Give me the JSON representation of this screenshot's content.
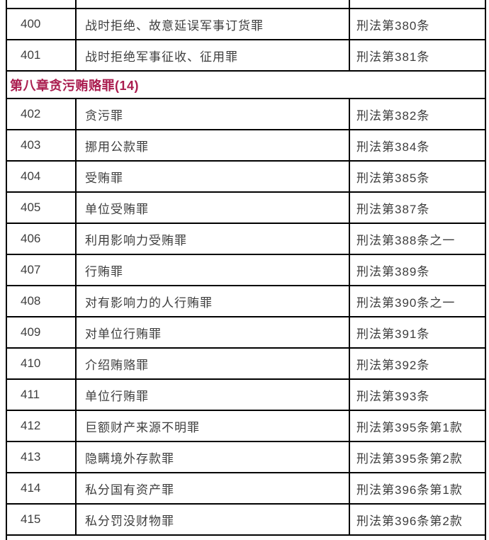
{
  "table": {
    "section_header": "第八章贪污贿赂罪(14)",
    "rows": [
      {
        "no": "400",
        "crime": "战时拒绝、故意延误军事订货罪",
        "article": "刑法第380条"
      },
      {
        "no": "401",
        "crime": "战时拒绝军事征收、征用罪",
        "article": "刑法第381条"
      },
      {
        "no": "402",
        "crime": "贪污罪",
        "article": "刑法第382条"
      },
      {
        "no": "403",
        "crime": "挪用公款罪",
        "article": "刑法第384条"
      },
      {
        "no": "404",
        "crime": "受贿罪",
        "article": "刑法第385条"
      },
      {
        "no": "405",
        "crime": "单位受贿罪",
        "article": "刑法第387条"
      },
      {
        "no": "406",
        "crime": "利用影响力受贿罪",
        "article": "刑法第388条之一"
      },
      {
        "no": "407",
        "crime": "行贿罪",
        "article": "刑法第389条"
      },
      {
        "no": "408",
        "crime": "对有影响力的人行贿罪",
        "article": "刑法第390条之一"
      },
      {
        "no": "409",
        "crime": "对单位行贿罪",
        "article": "刑法第391条"
      },
      {
        "no": "410",
        "crime": "介绍贿赂罪",
        "article": "刑法第392条"
      },
      {
        "no": "411",
        "crime": "单位行贿罪",
        "article": "刑法第393条"
      },
      {
        "no": "412",
        "crime": "巨额财产来源不明罪",
        "article": "刑法第395条第1款"
      },
      {
        "no": "413",
        "crime": "隐瞒境外存款罪",
        "article": "刑法第395条第2款"
      },
      {
        "no": "414",
        "crime": "私分国有资产罪",
        "article": "刑法第396条第1款"
      },
      {
        "no": "415",
        "crime": "私分罚没财物罪",
        "article": "刑法第396条第2款"
      }
    ],
    "colors": {
      "section_accent": "#aa1d4f",
      "body_text": "#3e3e3e",
      "border": "#000000"
    }
  }
}
